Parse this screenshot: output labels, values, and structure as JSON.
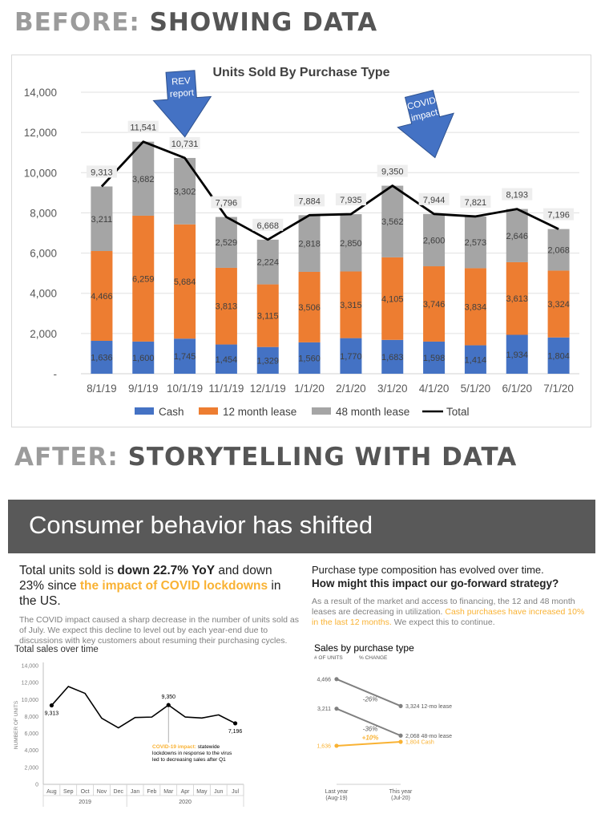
{
  "before": {
    "prefix": "BEFORE:",
    "label": "SHOWING DATA"
  },
  "after": {
    "prefix": "AFTER:",
    "label": "STORYTELLING WITH DATA"
  },
  "callouts": {
    "rev": [
      "REV",
      "report"
    ],
    "covid": [
      "COVID",
      "impact"
    ]
  },
  "banner": {
    "title": "Consumer behavior has shifted"
  },
  "left": {
    "h_pre": "Total units sold is ",
    "h_bold": "down 22.7% YoY",
    "h_mid": " and down 23% since ",
    "h_hl": "the impact of COVID lockdowns",
    "h_post": " in the US.",
    "body": "The COVID impact caused a sharp decrease in the number of units sold as of July. We expect this decline to level out by each year-end due to discussions with key customers about resuming their purchasing cycles."
  },
  "right": {
    "h1": "Purchase type composition has evolved over time.",
    "h2": "How might this impact our go-forward strategy?",
    "b_pre": "As a result of the market and access to financing, the 12 and 48 month leases are decreasing in utilization. ",
    "b_hl": "Cash purchases have increased 10% in the last 12 months.",
    "b_post": " We expect this to continue."
  },
  "colors": {
    "cash": "#4472c4",
    "lease12": "#ed7d31",
    "lease48": "#a5a5a5",
    "total": "#000000",
    "callout": "#4472c4",
    "highlight": "#f9b233",
    "slope_grey": "#808080"
  },
  "chart_data": [
    {
      "type": "bar",
      "stacked": true,
      "title": "Units Sold By Purchase Type",
      "categories": [
        "8/1/19",
        "9/1/19",
        "10/1/19",
        "11/1/19",
        "12/1/19",
        "1/1/20",
        "2/1/20",
        "3/1/20",
        "4/1/20",
        "5/1/20",
        "6/1/20",
        "7/1/20"
      ],
      "series": [
        {
          "name": "Cash",
          "values": [
            1636,
            1600,
            1745,
            1454,
            1329,
            1560,
            1770,
            1683,
            1598,
            1414,
            1934,
            1804
          ]
        },
        {
          "name": "12 month lease",
          "values": [
            4466,
            6259,
            5684,
            3813,
            3115,
            3506,
            3315,
            4105,
            3746,
            3834,
            3613,
            3324
          ]
        },
        {
          "name": "48 month lease",
          "values": [
            3211,
            3682,
            3302,
            2529,
            2224,
            2818,
            2850,
            3562,
            2600,
            2573,
            2646,
            2068
          ]
        }
      ],
      "line_series": {
        "name": "Total",
        "values": [
          9313,
          11541,
          10731,
          7796,
          6668,
          7884,
          7935,
          9350,
          7944,
          7821,
          8193,
          7196
        ]
      },
      "yticks": [
        "-",
        "2,000",
        "4,000",
        "6,000",
        "8,000",
        "10,000",
        "12,000",
        "14,000"
      ],
      "ylim": [
        0,
        14000
      ],
      "legend": [
        "Cash",
        "12 month lease",
        "48 month lease",
        "Total"
      ],
      "legend_position": "bottom"
    },
    {
      "type": "line",
      "title": "Total sales over time",
      "ylabel": "NUMBER OF UNITS",
      "categories": [
        "Aug",
        "Sep",
        "Oct",
        "Nov",
        "Dec",
        "Jan",
        "Feb",
        "Mar",
        "Apr",
        "May",
        "Jun",
        "Jul"
      ],
      "values": [
        9313,
        11541,
        10731,
        7796,
        6668,
        7884,
        7935,
        9350,
        7944,
        7821,
        8193,
        7196
      ],
      "labels": {
        "first": "9,313",
        "peak": "9,350",
        "last": "7,196"
      },
      "years": [
        "2019",
        "2020"
      ],
      "yticks": [
        "0",
        "2,000",
        "4,000",
        "6,000",
        "8,000",
        "10,000",
        "12,000",
        "14,000"
      ],
      "ylim": [
        0,
        14000
      ],
      "annotation_hl": "COVID-19 impact:",
      "annotation_lines": [
        " statewide",
        "lockdowns in response to the virus",
        "led to decreasing sales after Q1"
      ]
    },
    {
      "type": "slope",
      "title": "Sales by purchase type",
      "col_units": "# OF UNITS",
      "col_change": "% CHANGE",
      "x": [
        "Last year",
        "This year"
      ],
      "x_sub": [
        "(Aug-19)",
        "(Jul-20)"
      ],
      "series": [
        {
          "name": "12-mo lease",
          "start": 4466,
          "end": 3324,
          "start_label": "4,466",
          "end_label": "3,324 12-mo lease",
          "change": "-26%"
        },
        {
          "name": "48-mo lease",
          "start": 3211,
          "end": 2068,
          "start_label": "3,211",
          "end_label": "2,068 48-mo lease",
          "change": "-36%"
        },
        {
          "name": "Cash",
          "start": 1636,
          "end": 1804,
          "start_label": "1,636",
          "end_label": "1,804 Cash",
          "change": "+10%"
        }
      ]
    }
  ]
}
